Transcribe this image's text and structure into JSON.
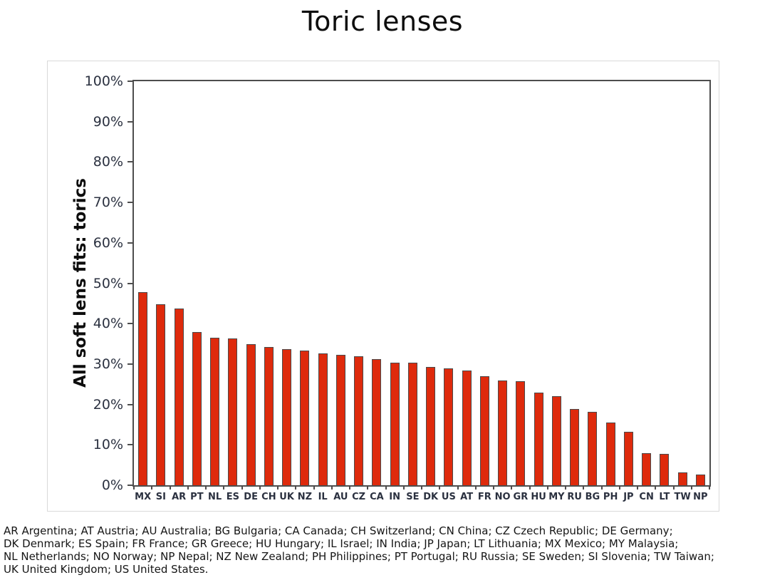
{
  "title": "Toric lenses",
  "chart_data": {
    "type": "bar",
    "title": "Toric lenses",
    "xlabel": "",
    "ylabel": "All soft lens fits: torics",
    "ylim": [
      0,
      100
    ],
    "grid": false,
    "legend": "none",
    "bar_fill_color": "#de2a0c",
    "bar_border_color": "#4a4a4a",
    "axis_color": "#4d4d4d",
    "tick_text_color": "#2b3140",
    "categories": [
      "MX",
      "SI",
      "AR",
      "PT",
      "NL",
      "ES",
      "DE",
      "CH",
      "UK",
      "NZ",
      "IL",
      "AU",
      "CZ",
      "CA",
      "IN",
      "SE",
      "DK",
      "US",
      "AT",
      "FR",
      "NO",
      "GR",
      "HU",
      "MY",
      "RU",
      "BG",
      "PH",
      "JP",
      "CN",
      "LT",
      "TW",
      "NP"
    ],
    "values": [
      47.8,
      44.8,
      43.7,
      37.9,
      36.5,
      36.4,
      35.0,
      34.2,
      33.7,
      33.4,
      32.6,
      32.2,
      31.9,
      31.2,
      30.4,
      30.3,
      29.3,
      28.9,
      28.4,
      27.0,
      25.9,
      25.8,
      22.9,
      22.1,
      18.8,
      18.1,
      15.5,
      13.3,
      8.0,
      7.8,
      3.2,
      2.6
    ],
    "yticks": [
      {
        "value": 100,
        "label": "100%"
      },
      {
        "value": 90,
        "label": "90%"
      },
      {
        "value": 80,
        "label": "80%"
      },
      {
        "value": 70,
        "label": "70%"
      },
      {
        "value": 60,
        "label": "60%"
      },
      {
        "value": 50,
        "label": "50%"
      },
      {
        "value": 40,
        "label": "40%"
      },
      {
        "value": 30,
        "label": "30%"
      },
      {
        "value": 20,
        "label": "20%"
      },
      {
        "value": 10,
        "label": "10%"
      },
      {
        "value": 0,
        "label": "0%"
      }
    ]
  },
  "footnote": "AR Argentina; AT Austria; AU Australia; BG Bulgaria; CA Canada; CH Switzerland; CN China; CZ Czech Republic; DE Germany;\nDK Denmark; ES Spain; FR France; GR Greece; HU Hungary; IL Israel; IN India; JP Japan; LT Lithuania; MX Mexico; MY Malaysia;\nNL Netherlands; NO Norway; NP Nepal; NZ New Zealand; PH Philippines; PT Portugal; RU Russia; SE Sweden; SI Slovenia; TW Taiwan;\nUK United Kingdom; US United States."
}
